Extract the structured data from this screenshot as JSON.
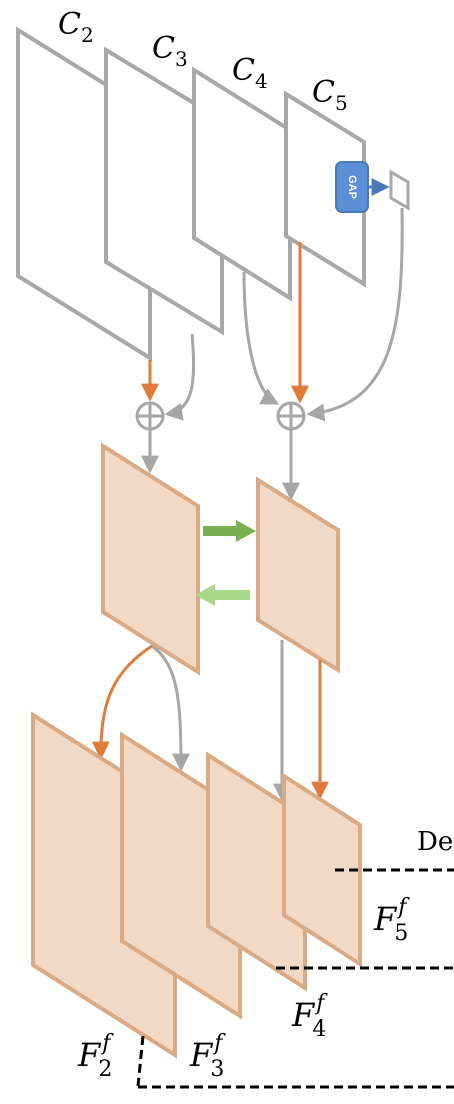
{
  "labels": {
    "c2": "C",
    "c2_sub": "2",
    "c3": "C",
    "c3_sub": "3",
    "c4": "C",
    "c4_sub": "4",
    "c5": "C",
    "c5_sub": "5",
    "gap": "GAP",
    "de": "De",
    "f2": "F",
    "f2_sub": "2",
    "f2_sup": "f",
    "f3": "F",
    "f3_sub": "3",
    "f3_sup": "f",
    "f4": "F",
    "f4_sub": "4",
    "f4_sup": "f",
    "f5": "F",
    "f5_sub": "5",
    "f5_sup": "f"
  },
  "colors": {
    "frame_stroke": "#a8a8a8",
    "feature_fill": "#f1d9c6",
    "feature_stroke": "#d9aa86",
    "orange_arrow": "#e07b39",
    "gray_arrow": "#a6a6a6",
    "green_dark": "#78b050",
    "green_light": "#a8d88a",
    "gap_fill": "#5b8fd6",
    "gap_stroke": "#4a78b8",
    "blue_arrow": "#4a78b8"
  }
}
